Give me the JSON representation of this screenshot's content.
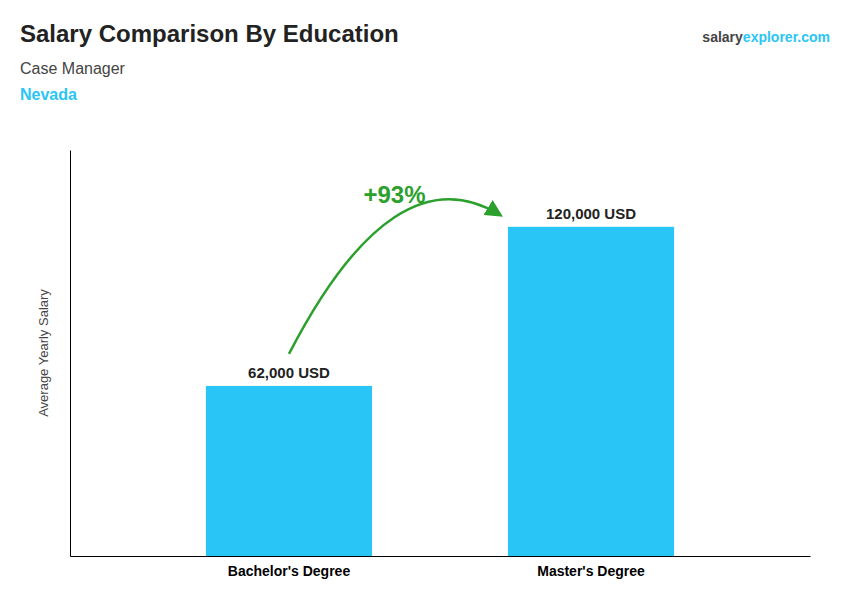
{
  "chart_data": {
    "type": "bar",
    "title": "Salary Comparison By Education",
    "subtitle": "Case Manager",
    "ylabel": "Average Yearly Salary",
    "annotations": [
      "Nevada",
      "salary",
      "explorer.com",
      "+93%"
    ],
    "categories": [
      "Bachelor's Degree",
      "Master's Degree"
    ],
    "values": [
      62000,
      120000
    ],
    "value_labels": [
      "62,000 USD",
      "120,000 USD"
    ],
    "data_labels": true,
    "color": "#29C5F6",
    "ylim": [
      0,
      148000
    ],
    "grid": false,
    "tick_labels": "x"
  }
}
